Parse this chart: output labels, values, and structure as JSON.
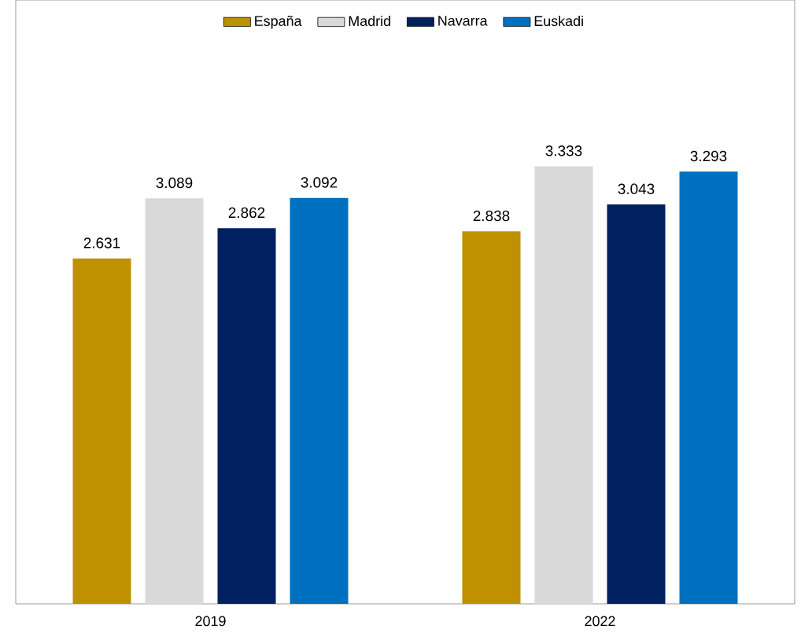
{
  "chart_data": {
    "type": "bar",
    "categories": [
      "2019",
      "2022"
    ],
    "series": [
      {
        "name": "España",
        "color": "#bf9000",
        "values": [
          2631,
          2838
        ],
        "value_labels": [
          "2.631",
          "2.838"
        ]
      },
      {
        "name": "Madrid",
        "color": "#d9d9d9",
        "values": [
          3089,
          3333
        ],
        "value_labels": [
          "3.089",
          "3.333"
        ]
      },
      {
        "name": "Navarra",
        "color": "#002060",
        "values": [
          2862,
          3043
        ],
        "value_labels": [
          "2.862",
          "3.043"
        ]
      },
      {
        "name": "Euskadi",
        "color": "#0070c0",
        "values": [
          3092,
          3293
        ],
        "value_labels": [
          "3.092",
          "3.293"
        ]
      }
    ],
    "ylim": [
      0,
      4600
    ],
    "legend": "top",
    "tick_labels": "x"
  }
}
